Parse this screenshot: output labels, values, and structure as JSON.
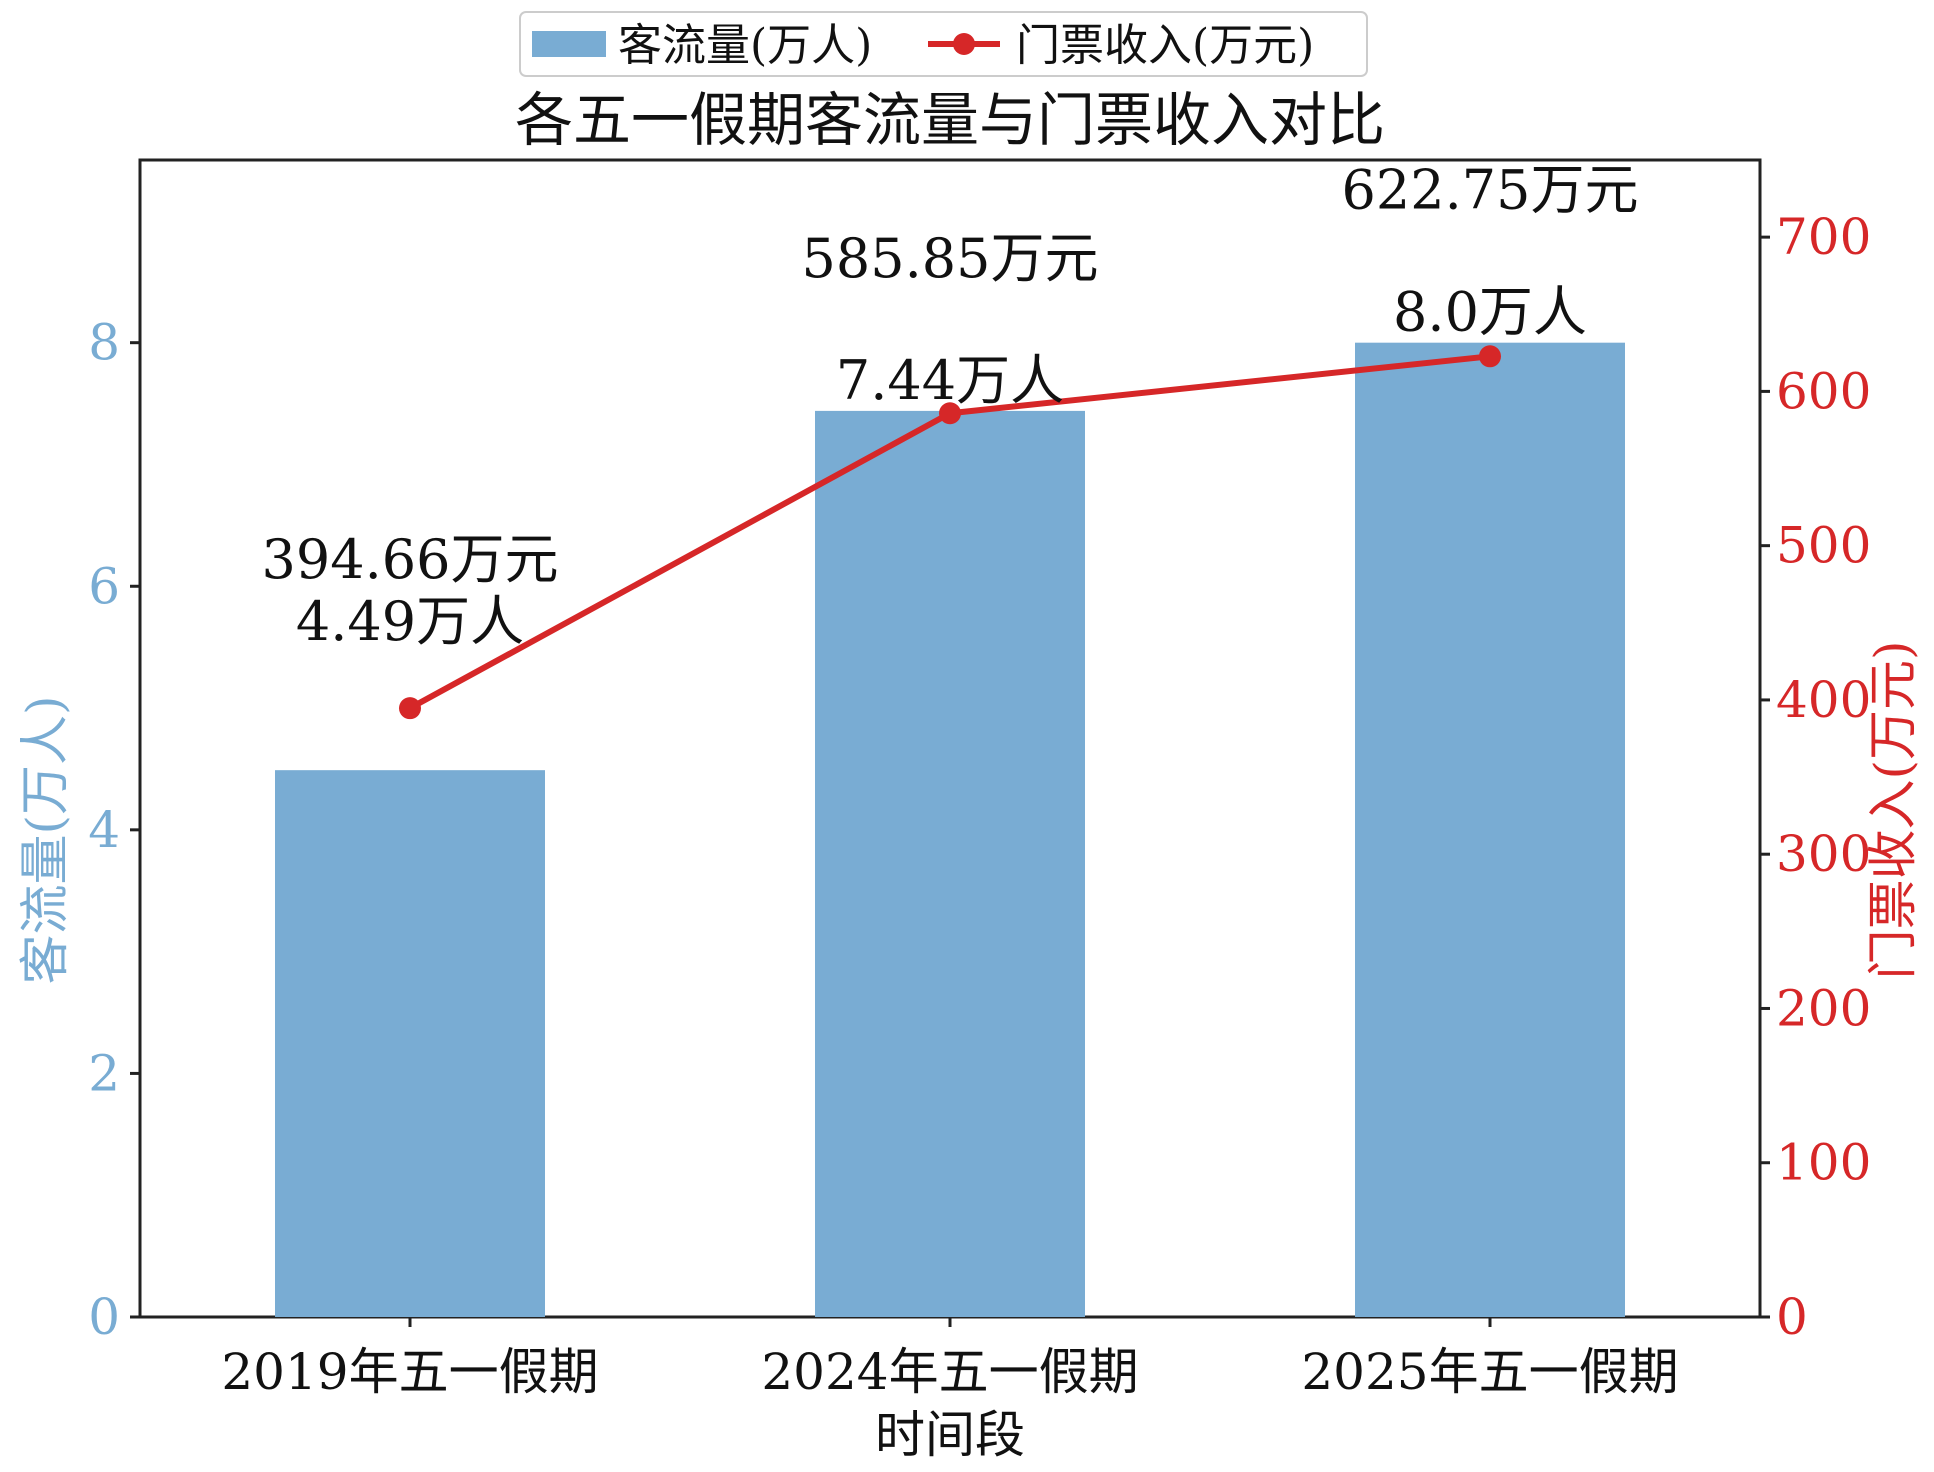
{
  "chart_data": {
    "type": "bar+line",
    "title": "各五一假期客流量与门票收入对比",
    "xlabel": "时间段",
    "categories": [
      "2019年五一假期",
      "2024年五一假期",
      "2025年五一假期"
    ],
    "series": [
      {
        "name": "客流量(万人)",
        "kind": "bar",
        "axis": "left",
        "color": "#79acd3",
        "values": [
          4.49,
          7.44,
          8.0
        ],
        "labels": [
          "4.49万人",
          "7.44万人",
          "8.0万人"
        ]
      },
      {
        "name": "门票收入(万元)",
        "kind": "line",
        "axis": "right",
        "color": "#d62728",
        "values": [
          394.66,
          585.85,
          622.75
        ],
        "labels": [
          "394.66万元",
          "585.85万元",
          "622.75万元"
        ]
      }
    ],
    "y_left": {
      "label": "客流量(万人)",
      "range": [
        0,
        9.5
      ],
      "ticks": [
        0,
        2,
        4,
        6,
        8
      ],
      "color": "#79acd3"
    },
    "y_right": {
      "label": "门票收入(万元)",
      "range": [
        0,
        750
      ],
      "ticks": [
        0,
        100,
        200,
        300,
        400,
        500,
        600,
        700
      ],
      "color": "#d62728"
    },
    "legend": {
      "placement": "top-center",
      "items": [
        "客流量(万人)",
        "门票收入(万元)"
      ]
    },
    "grid": false
  }
}
